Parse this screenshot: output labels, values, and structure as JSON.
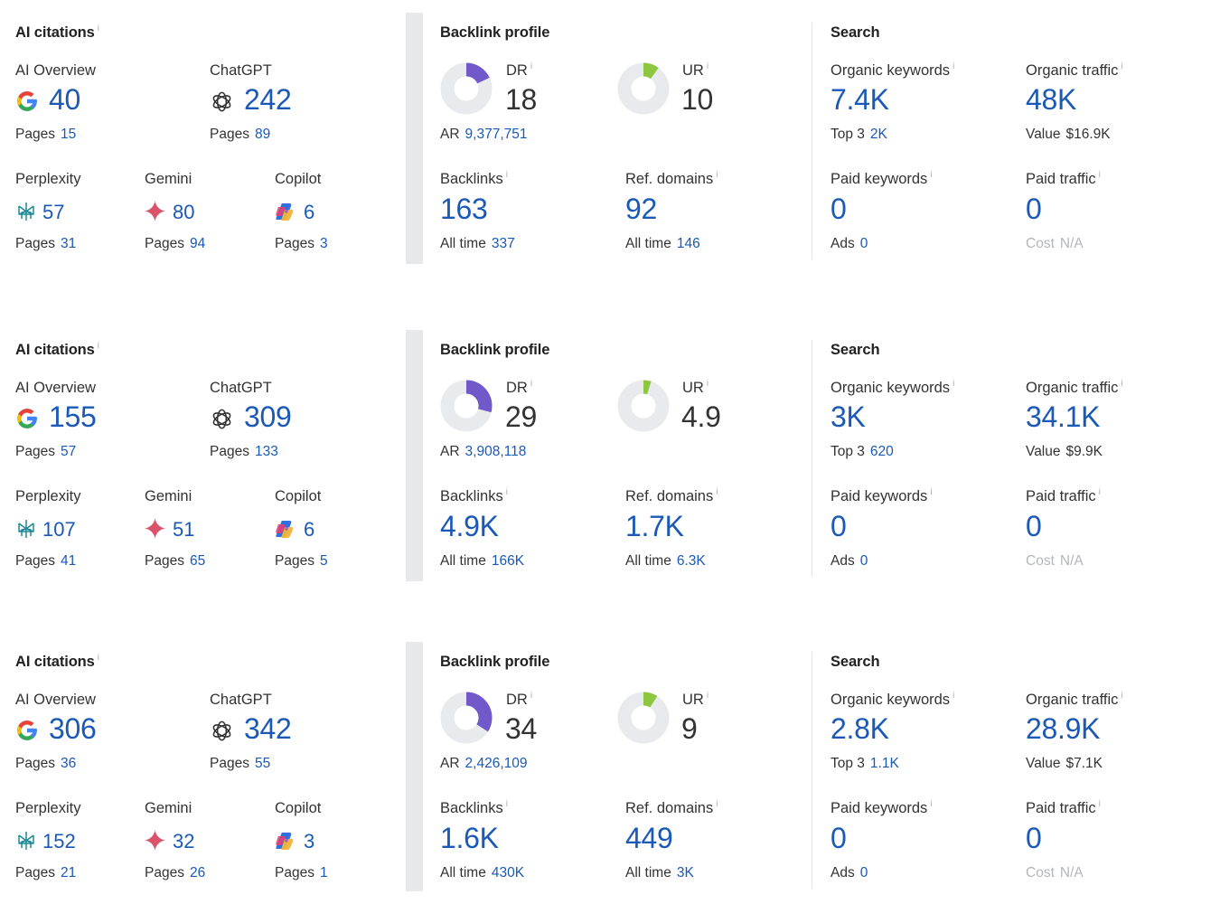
{
  "colors": {
    "accent": "#1a59b7",
    "dr": "#7159c9",
    "ur": "#8dc63f",
    "ring": "#e8eaed"
  },
  "labels": {
    "ai_citations": "AI citations",
    "ai_overview": "AI Overview",
    "chatgpt": "ChatGPT",
    "perplexity": "Perplexity",
    "gemini": "Gemini",
    "copilot": "Copilot",
    "pages": "Pages",
    "backlink_profile": "Backlink profile",
    "dr": "DR",
    "ur": "UR",
    "ar": "AR",
    "backlinks": "Backlinks",
    "ref_domains": "Ref. domains",
    "all_time": "All time",
    "search": "Search",
    "organic_keywords": "Organic keywords",
    "organic_traffic": "Organic traffic",
    "top3": "Top 3",
    "value": "Value",
    "paid_keywords": "Paid keywords",
    "paid_traffic": "Paid traffic",
    "ads": "Ads",
    "cost": "Cost",
    "info_mark": "i"
  },
  "icons": {
    "ai_overview": "google-g-icon",
    "chatgpt": "chatgpt-icon",
    "perplexity": "perplexity-icon",
    "gemini": "gemini-sparkle-icon",
    "copilot": "copilot-icon",
    "dr": "dr-donut",
    "ur": "ur-donut"
  },
  "rows": [
    {
      "ai": {
        "overview": {
          "value": "40",
          "pages": "15"
        },
        "chatgpt": {
          "value": "242",
          "pages": "89"
        },
        "perplexity": {
          "value": "57",
          "pages": "31"
        },
        "gemini": {
          "value": "80",
          "pages": "94"
        },
        "copilot": {
          "value": "6",
          "pages": "3"
        }
      },
      "backlink": {
        "dr": {
          "value": "18",
          "percent": 18
        },
        "ar": "9,377,751",
        "ur": {
          "value": "10",
          "percent": 10
        },
        "backlinks": "163",
        "backlinks_all_time": "337",
        "ref_domains": "92",
        "ref_domains_all_time": "146"
      },
      "search": {
        "organic_keywords": "7.4K",
        "top3": "2K",
        "organic_traffic": "48K",
        "value": "$16.9K",
        "paid_keywords": "0",
        "ads": "0",
        "paid_traffic": "0",
        "cost": "N/A"
      }
    },
    {
      "ai": {
        "overview": {
          "value": "155",
          "pages": "57"
        },
        "chatgpt": {
          "value": "309",
          "pages": "133"
        },
        "perplexity": {
          "value": "107",
          "pages": "41"
        },
        "gemini": {
          "value": "51",
          "pages": "65"
        },
        "copilot": {
          "value": "6",
          "pages": "5"
        }
      },
      "backlink": {
        "dr": {
          "value": "29",
          "percent": 29
        },
        "ar": "3,908,118",
        "ur": {
          "value": "4.9",
          "percent": 4.9
        },
        "backlinks": "4.9K",
        "backlinks_all_time": "166K",
        "ref_domains": "1.7K",
        "ref_domains_all_time": "6.3K"
      },
      "search": {
        "organic_keywords": "3K",
        "top3": "620",
        "organic_traffic": "34.1K",
        "value": "$9.9K",
        "paid_keywords": "0",
        "ads": "0",
        "paid_traffic": "0",
        "cost": "N/A"
      }
    },
    {
      "ai": {
        "overview": {
          "value": "306",
          "pages": "36"
        },
        "chatgpt": {
          "value": "342",
          "pages": "55"
        },
        "perplexity": {
          "value": "152",
          "pages": "21"
        },
        "gemini": {
          "value": "32",
          "pages": "26"
        },
        "copilot": {
          "value": "3",
          "pages": "1"
        }
      },
      "backlink": {
        "dr": {
          "value": "34",
          "percent": 34
        },
        "ar": "2,426,109",
        "ur": {
          "value": "9",
          "percent": 9
        },
        "backlinks": "1.6K",
        "backlinks_all_time": "430K",
        "ref_domains": "449",
        "ref_domains_all_time": "3K"
      },
      "search": {
        "organic_keywords": "2.8K",
        "top3": "1.1K",
        "organic_traffic": "28.9K",
        "value": "$7.1K",
        "paid_keywords": "0",
        "ads": "0",
        "paid_traffic": "0",
        "cost": "N/A"
      }
    }
  ]
}
